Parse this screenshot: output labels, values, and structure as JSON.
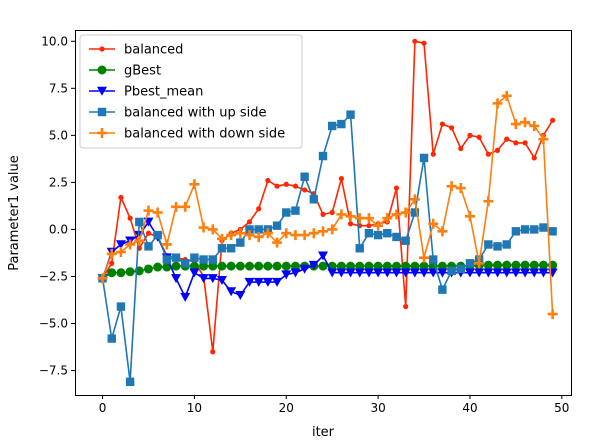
{
  "chart_data": {
    "type": "line",
    "xlabel": "iter",
    "ylabel": "Parameter1 value",
    "xlim": [
      -3,
      51
    ],
    "ylim": [
      -8.8,
      10.6
    ],
    "xticks": [
      0,
      10,
      20,
      30,
      40,
      50
    ],
    "xtick_labels": [
      "0",
      "10",
      "20",
      "30",
      "40",
      "50"
    ],
    "yticks": [
      -7.5,
      -5.0,
      -2.5,
      0.0,
      2.5,
      5.0,
      7.5,
      10.0
    ],
    "ytick_labels": [
      "−7.5",
      "−5.0",
      "−2.5",
      "0.0",
      "2.5",
      "5.0",
      "7.5",
      "10.0"
    ],
    "grid": false,
    "legend_position": "top-left",
    "series": [
      {
        "name": "balanced",
        "color": "#ff2600",
        "marker": "point",
        "x": [
          0,
          1,
          2,
          3,
          4,
          5,
          6,
          7,
          8,
          9,
          10,
          11,
          12,
          13,
          14,
          15,
          16,
          17,
          18,
          19,
          20,
          21,
          22,
          23,
          24,
          25,
          26,
          27,
          28,
          29,
          30,
          31,
          32,
          33,
          34,
          35,
          36,
          37,
          38,
          39,
          40,
          41,
          42,
          43,
          44,
          45,
          46,
          47,
          48,
          49
        ],
        "y": [
          -2.6,
          -1.8,
          1.7,
          0.6,
          -1.0,
          -0.2,
          -0.4,
          -1.4,
          -1.5,
          -1.6,
          -1.7,
          -2.5,
          -6.5,
          -0.6,
          -0.2,
          0.0,
          0.4,
          1.1,
          2.6,
          2.3,
          2.4,
          2.3,
          2.1,
          1.9,
          0.8,
          0.9,
          2.7,
          0.3,
          0.2,
          0.2,
          0.3,
          0.4,
          2.2,
          -4.1,
          10.0,
          9.9,
          4.0,
          5.6,
          5.4,
          4.3,
          5.0,
          4.9,
          4.0,
          4.2,
          4.8,
          4.6,
          4.6,
          3.8,
          5.0,
          5.8
        ]
      },
      {
        "name": "gBest",
        "color": "#008000",
        "marker": "circle",
        "x": [
          0,
          1,
          2,
          3,
          4,
          5,
          6,
          7,
          8,
          9,
          10,
          11,
          12,
          13,
          14,
          15,
          16,
          17,
          18,
          19,
          20,
          21,
          22,
          23,
          24,
          25,
          26,
          27,
          28,
          29,
          30,
          31,
          32,
          33,
          34,
          35,
          36,
          37,
          38,
          39,
          40,
          41,
          42,
          43,
          44,
          45,
          46,
          47,
          48,
          49
        ],
        "y": [
          -2.6,
          -2.3,
          -2.3,
          -2.25,
          -2.2,
          -2.1,
          -2.0,
          -2.0,
          -1.95,
          -1.95,
          -1.95,
          -1.95,
          -1.95,
          -1.95,
          -1.95,
          -1.95,
          -1.95,
          -1.95,
          -1.95,
          -1.95,
          -1.95,
          -1.95,
          -1.95,
          -1.95,
          -1.95,
          -1.95,
          -1.95,
          -1.95,
          -1.95,
          -1.95,
          -1.95,
          -1.95,
          -1.95,
          -1.95,
          -1.95,
          -1.95,
          -1.95,
          -1.95,
          -1.95,
          -1.95,
          -1.95,
          -1.9,
          -1.9,
          -1.9,
          -1.9,
          -1.9,
          -1.9,
          -1.9,
          -1.9,
          -1.9
        ]
      },
      {
        "name": "Pbest_mean",
        "color": "#0000ff",
        "marker": "triangle-down",
        "x": [
          0,
          1,
          2,
          3,
          4,
          5,
          6,
          7,
          8,
          9,
          10,
          11,
          12,
          13,
          14,
          15,
          16,
          17,
          18,
          19,
          20,
          21,
          22,
          23,
          24,
          25,
          26,
          27,
          28,
          29,
          30,
          31,
          32,
          33,
          34,
          35,
          36,
          37,
          38,
          39,
          40,
          41,
          42,
          43,
          44,
          45,
          46,
          47,
          48,
          49
        ],
        "y": [
          -2.6,
          -1.2,
          -0.8,
          -0.6,
          -0.3,
          0.4,
          -0.4,
          -1.5,
          -2.6,
          -3.6,
          -2.3,
          -2.6,
          -2.6,
          -2.7,
          -3.3,
          -3.5,
          -2.8,
          -2.8,
          -2.8,
          -2.8,
          -2.4,
          -2.3,
          -2.1,
          -1.9,
          -1.4,
          -2.3,
          -2.3,
          -2.3,
          -2.3,
          -2.3,
          -2.3,
          -2.3,
          -2.3,
          -2.3,
          -2.3,
          -2.3,
          -2.3,
          -2.3,
          -2.3,
          -2.3,
          -2.3,
          -2.3,
          -2.3,
          -2.3,
          -2.3,
          -2.3,
          -2.3,
          -2.3,
          -2.3,
          -2.3
        ]
      },
      {
        "name": "balanced with up side",
        "color": "#1f77b4",
        "marker": "square",
        "x": [
          0,
          1,
          2,
          3,
          4,
          5,
          6,
          7,
          8,
          9,
          10,
          11,
          12,
          13,
          14,
          15,
          16,
          17,
          18,
          19,
          20,
          21,
          22,
          23,
          24,
          25,
          26,
          27,
          28,
          29,
          30,
          31,
          32,
          33,
          34,
          35,
          36,
          37,
          38,
          39,
          40,
          41,
          42,
          43,
          44,
          45,
          46,
          47,
          48,
          49
        ],
        "y": [
          -2.6,
          -5.8,
          -4.1,
          -8.1,
          0.4,
          -0.9,
          -0.3,
          -1.6,
          -1.5,
          -1.8,
          -1.5,
          -1.6,
          -1.6,
          -1.0,
          -1.0,
          -0.7,
          0.0,
          0.0,
          0.0,
          0.2,
          0.9,
          1.0,
          2.8,
          1.6,
          3.9,
          5.5,
          5.6,
          6.1,
          -1.0,
          -0.2,
          -0.3,
          -0.2,
          -0.4,
          -0.6,
          0.9,
          3.8,
          -1.6,
          -3.2,
          -2.2,
          -2.1,
          -1.8,
          -1.6,
          -0.8,
          -0.9,
          -0.8,
          -0.1,
          0.0,
          0.0,
          0.1,
          -0.1
        ]
      },
      {
        "name": "balanced with down side",
        "color": "#ff7f0e",
        "marker": "plus",
        "x": [
          0,
          1,
          2,
          3,
          4,
          5,
          6,
          7,
          8,
          9,
          10,
          11,
          12,
          13,
          14,
          15,
          16,
          17,
          18,
          19,
          20,
          21,
          22,
          23,
          24,
          25,
          26,
          27,
          28,
          29,
          30,
          31,
          32,
          33,
          34,
          35,
          36,
          37,
          38,
          39,
          40,
          41,
          42,
          43,
          44,
          45,
          46,
          47,
          48,
          49
        ],
        "y": [
          -2.6,
          -1.3,
          -1.2,
          -0.8,
          -0.6,
          1.0,
          0.9,
          -0.8,
          1.2,
          1.2,
          2.4,
          0.1,
          0.0,
          -0.5,
          -0.3,
          -0.2,
          -0.3,
          -0.4,
          -0.2,
          -0.7,
          -0.2,
          -0.3,
          -0.3,
          -0.2,
          -0.1,
          0.0,
          0.8,
          0.7,
          0.6,
          0.6,
          0.2,
          0.6,
          0.8,
          0.9,
          1.6,
          -1.5,
          0.3,
          -0.1,
          2.3,
          2.2,
          0.7,
          -1.8,
          1.5,
          6.7,
          7.1,
          5.6,
          5.7,
          5.5,
          4.8,
          -4.5
        ]
      }
    ]
  }
}
